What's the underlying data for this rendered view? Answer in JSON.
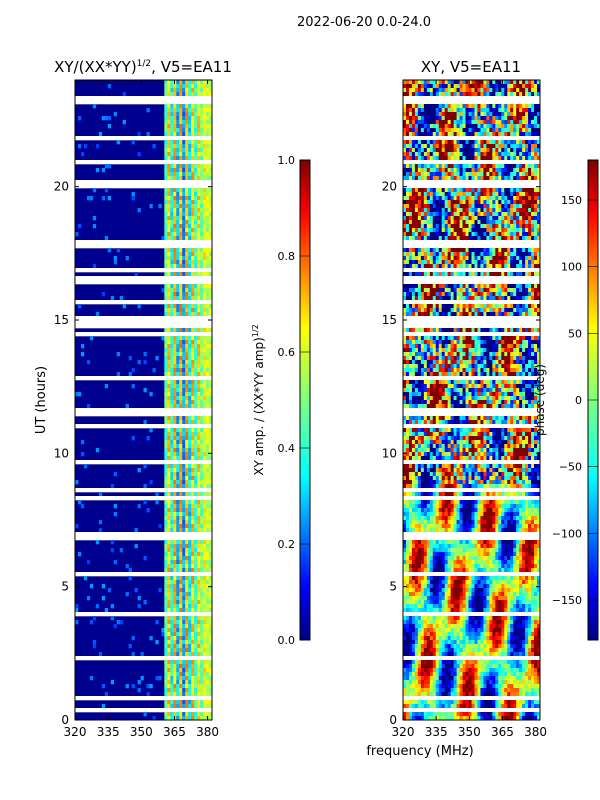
{
  "figure_title": "2022-06-20 0.0-24.0",
  "xlabel_shared": "frequency (MHz)",
  "chart_data": [
    {
      "type": "heatmap",
      "title": "XY/(XX*YY)^1/2, V5=EA11",
      "title_main": "XY/(XX*YY)",
      "title_sup": "1/2",
      "title_rest": ", V5=EA11",
      "xlabel": "frequency (MHz)",
      "ylabel": "UT (hours)",
      "xlim": [
        320,
        382
      ],
      "ylim": [
        0,
        24
      ],
      "xticks": [
        320,
        335,
        350,
        365,
        380
      ],
      "yticks": [
        0,
        5,
        10,
        15,
        20
      ],
      "colorbar": {
        "label_main": "XY amp. / (XX*YY amp)",
        "label_sup": "1/2",
        "range": [
          0.0,
          1.0
        ],
        "ticks": [
          "0.0",
          "0.2",
          "0.4",
          "0.6",
          "0.8",
          "1.0"
        ],
        "colormap": "jet"
      }
    },
    {
      "type": "heatmap",
      "title": "XY, V5=EA11",
      "xlabel": "frequency (MHz)",
      "ylabel": "",
      "xlim": [
        320,
        382
      ],
      "ylim": [
        0,
        24
      ],
      "xticks": [
        320,
        335,
        350,
        365,
        380
      ],
      "yticks": [
        0,
        5,
        10,
        15,
        20
      ],
      "colorbar": {
        "label": "phase (deg)",
        "range": [
          -180,
          180
        ],
        "ticks": [
          "−150",
          "−100",
          "−50",
          "0",
          "50",
          "100",
          "150"
        ],
        "tick_values": [
          -150,
          -100,
          -50,
          0,
          50,
          100,
          150
        ],
        "colormap": "jet"
      }
    }
  ],
  "colors": {
    "jet_low": "#00007f",
    "jet_mid_blue": "#0000ff",
    "jet_cyan": "#00ffff",
    "jet_green": "#7fff7f",
    "jet_yellow": "#ffff00",
    "jet_red": "#ff0000",
    "jet_high": "#7f0000"
  }
}
